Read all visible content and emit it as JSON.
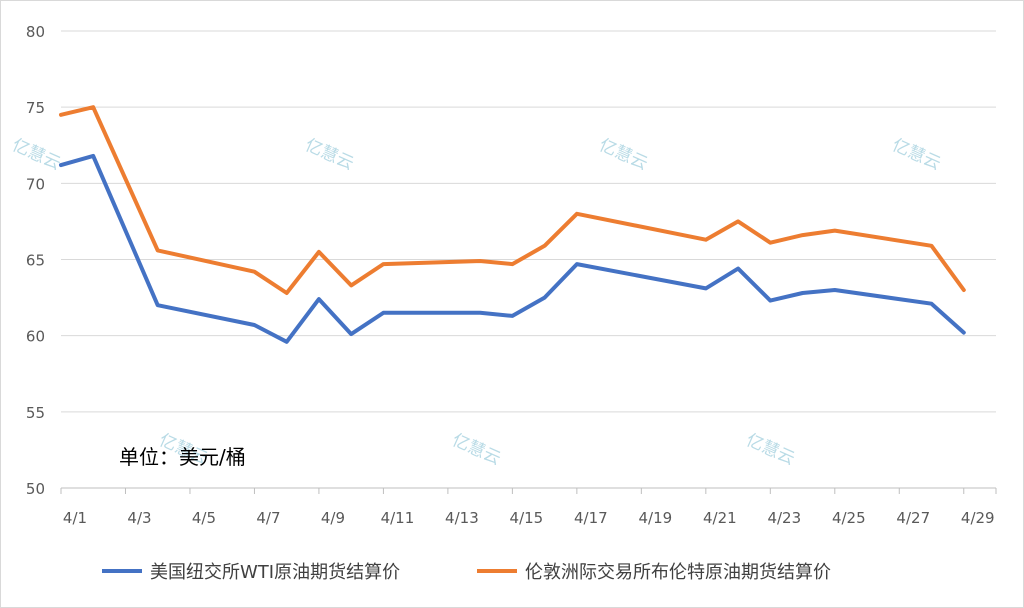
{
  "chart_data": {
    "type": "line",
    "unit_label": "单位：美元/桶",
    "ylim": [
      50,
      80
    ],
    "y_ticks": [
      "50",
      "55",
      "60",
      "65",
      "70",
      "75",
      "80"
    ],
    "x_ticks": [
      "4/1",
      "4/3",
      "4/5",
      "4/7",
      "4/9",
      "4/11",
      "4/13",
      "4/15",
      "4/17",
      "4/19",
      "4/21",
      "4/23",
      "4/25",
      "4/27",
      "4/29"
    ],
    "grid": "horizontal",
    "legend": "bottom",
    "watermark": "亿慧云",
    "series": [
      {
        "name": "美国纽交所WTI原油期货结算价",
        "color": "#4472c4",
        "points": [
          {
            "x": "4/1",
            "y": 71.2
          },
          {
            "x": "4/2",
            "y": 71.8
          },
          {
            "x": "4/4",
            "y": 62.0
          },
          {
            "x": "4/7",
            "y": 60.7
          },
          {
            "x": "4/8",
            "y": 59.6
          },
          {
            "x": "4/9",
            "y": 62.4
          },
          {
            "x": "4/10",
            "y": 60.1
          },
          {
            "x": "4/11",
            "y": 61.5
          },
          {
            "x": "4/14",
            "y": 61.5
          },
          {
            "x": "4/15",
            "y": 61.3
          },
          {
            "x": "4/16",
            "y": 62.5
          },
          {
            "x": "4/17",
            "y": 64.7
          },
          {
            "x": "4/21",
            "y": 63.1
          },
          {
            "x": "4/22",
            "y": 64.4
          },
          {
            "x": "4/23",
            "y": 62.3
          },
          {
            "x": "4/24",
            "y": 62.8
          },
          {
            "x": "4/25",
            "y": 63.0
          },
          {
            "x": "4/28",
            "y": 62.1
          },
          {
            "x": "4/29",
            "y": 60.2
          }
        ]
      },
      {
        "name": "伦敦洲际交易所布伦特原油期货结算价",
        "color": "#ed7d31",
        "points": [
          {
            "x": "4/1",
            "y": 74.5
          },
          {
            "x": "4/2",
            "y": 75.0
          },
          {
            "x": "4/4",
            "y": 65.6
          },
          {
            "x": "4/7",
            "y": 64.2
          },
          {
            "x": "4/8",
            "y": 62.8
          },
          {
            "x": "4/9",
            "y": 65.5
          },
          {
            "x": "4/10",
            "y": 63.3
          },
          {
            "x": "4/11",
            "y": 64.7
          },
          {
            "x": "4/14",
            "y": 64.9
          },
          {
            "x": "4/15",
            "y": 64.7
          },
          {
            "x": "4/16",
            "y": 65.9
          },
          {
            "x": "4/17",
            "y": 68.0
          },
          {
            "x": "4/21",
            "y": 66.3
          },
          {
            "x": "4/22",
            "y": 67.5
          },
          {
            "x": "4/23",
            "y": 66.1
          },
          {
            "x": "4/24",
            "y": 66.6
          },
          {
            "x": "4/25",
            "y": 66.9
          },
          {
            "x": "4/28",
            "y": 65.9
          },
          {
            "x": "4/29",
            "y": 63.0
          }
        ]
      }
    ]
  }
}
